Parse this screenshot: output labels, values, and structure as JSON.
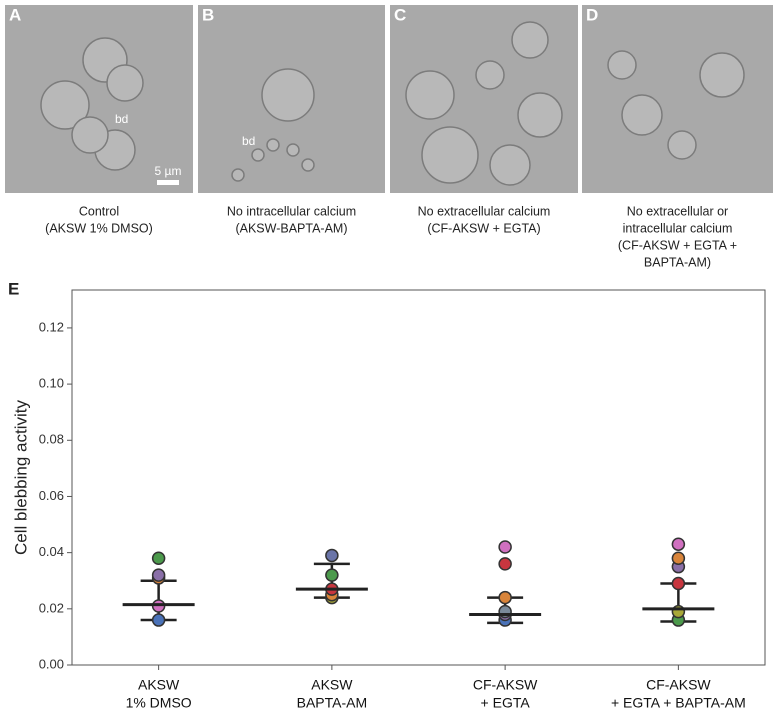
{
  "panels": [
    {
      "letter": "A",
      "caption": [
        "Control",
        "(AKSW 1% DMSO)"
      ],
      "annotations": [
        "bd",
        "5 µm"
      ]
    },
    {
      "letter": "B",
      "caption": [
        "No intracellular calcium",
        "(AKSW-BAPTA-AM)"
      ],
      "annotations": [
        "bd"
      ]
    },
    {
      "letter": "C",
      "caption": [
        "No extracellular calcium",
        "(CF-AKSW + EGTA)"
      ],
      "annotations": []
    },
    {
      "letter": "D",
      "caption": [
        "No extracellular or",
        "intracellular calcium",
        "(CF-AKSW + EGTA +",
        "BAPTA-AM)"
      ],
      "annotations": []
    }
  ],
  "chart_data": {
    "type": "superplot",
    "panel_letter": "E",
    "ylabel": "Cell blebbing activity",
    "categories": [
      [
        "AKSW",
        "1% DMSO"
      ],
      [
        "AKSW",
        "BAPTA-AM"
      ],
      [
        "CF-AKSW",
        "+ EGTA"
      ],
      [
        "CF-AKSW",
        "+ EGTA + BAPTA-AM"
      ]
    ],
    "ylim": [
      0,
      0.1335
    ],
    "yticks": [
      {
        "value": 0,
        "label": "0.00"
      },
      {
        "value": 0.02,
        "label": "0.02"
      },
      {
        "value": 0.04,
        "label": "0.04"
      },
      {
        "value": 0.06,
        "label": "0.06"
      },
      {
        "value": 0.08,
        "label": "0.08"
      },
      {
        "value": 0.1,
        "label": "0.10"
      },
      {
        "value": 0.12,
        "label": "0.12"
      }
    ],
    "medians": [
      0.0215,
      0.027,
      0.018,
      0.02
    ],
    "err_low": [
      0.016,
      0.024,
      0.015,
      0.0155
    ],
    "err_high": [
      0.03,
      0.036,
      0.024,
      0.029
    ],
    "replicate_means": [
      {
        "values": [
          0.016,
          0.021,
          0.031,
          0.032,
          0.038
        ],
        "colors": [
          "#4a72b8",
          "#d070c0",
          "#d8843a",
          "#8a6fa8",
          "#4c9a4c"
        ]
      },
      {
        "values": [
          0.024,
          0.025,
          0.027,
          0.032,
          0.039
        ],
        "colors": [
          "#a8a838",
          "#d8843a",
          "#c8363f",
          "#4c9a4c",
          "#6a74a8"
        ]
      },
      {
        "values": [
          0.016,
          0.018,
          0.019,
          0.024,
          0.036,
          0.042
        ],
        "colors": [
          "#4a72b8",
          "#8a6fa8",
          "#7a8a9a",
          "#d8843a",
          "#c8363f",
          "#d070c0"
        ]
      },
      {
        "values": [
          0.016,
          0.019,
          0.029,
          0.035,
          0.038,
          0.043
        ],
        "colors": [
          "#4c9a4c",
          "#a8a838",
          "#c8363f",
          "#8a6fa8",
          "#d8843a",
          "#d070c0"
        ]
      }
    ]
  }
}
